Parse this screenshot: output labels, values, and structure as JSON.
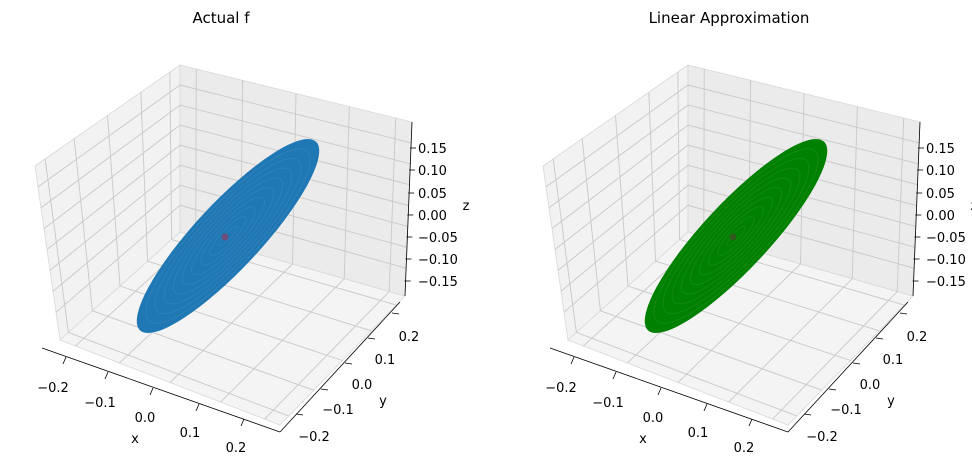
{
  "chart_data": [
    {
      "type": "surface3d",
      "title": "Actual f",
      "xlabel": "x",
      "ylabel": "y",
      "zlabel": "z",
      "xticks": [
        "−0.2",
        "−0.1",
        "0.0",
        "0.1",
        "0.2"
      ],
      "yticks": [
        "−0.2",
        "−0.1",
        "0.0",
        "0.1",
        "0.2"
      ],
      "zticks": [
        "0.15",
        "0.10",
        "0.05",
        "0.00",
        "−0.05",
        "−0.10",
        "−0.15"
      ],
      "surface_color": "#1f77b4",
      "marker_color": "#6b4f7a",
      "marker_point": {
        "x": 0.0,
        "y": 0.0,
        "z": 0.0
      }
    },
    {
      "type": "surface3d",
      "title": "Linear Approximation",
      "xlabel": "x",
      "ylabel": "y",
      "zlabel": "z",
      "xticks": [
        "−0.2",
        "−0.1",
        "0.0",
        "0.1",
        "0.2"
      ],
      "yticks": [
        "−0.2",
        "−0.1",
        "0.0",
        "0.1",
        "0.2"
      ],
      "zticks": [
        "0.15",
        "0.10",
        "0.05",
        "0.00",
        "−0.05",
        "−0.10",
        "−0.15"
      ],
      "surface_color": "#008000",
      "marker_color": "#2f5a1f",
      "marker_point": {
        "x": 0.0,
        "y": 0.0,
        "z": 0.0
      }
    }
  ]
}
